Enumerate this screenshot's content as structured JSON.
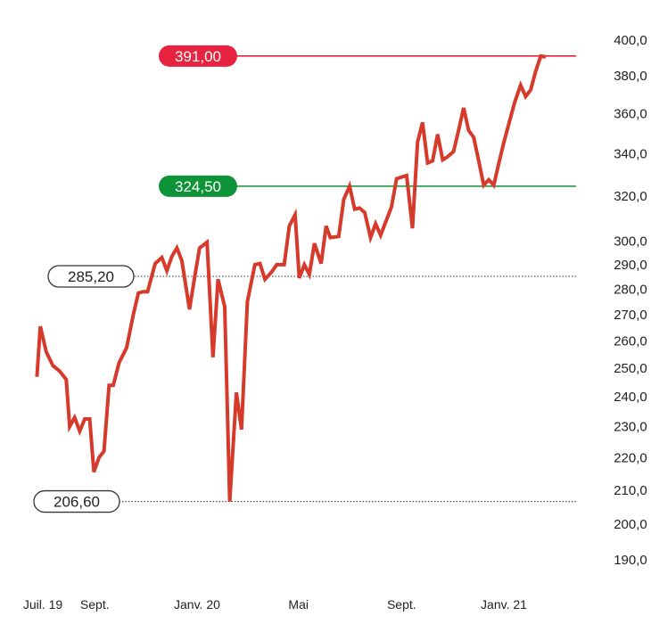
{
  "chart_data": {
    "type": "line",
    "title": "",
    "xlabel": "",
    "ylabel": "",
    "ylim": [
      185,
      400
    ],
    "y_scale": "log",
    "grid": false,
    "y_ticks": [
      {
        "value": 400,
        "label": "400,0"
      },
      {
        "value": 380,
        "label": "380,0"
      },
      {
        "value": 360,
        "label": "360,0"
      },
      {
        "value": 340,
        "label": "340,0"
      },
      {
        "value": 320,
        "label": "320,0"
      },
      {
        "value": 300,
        "label": "300,0"
      },
      {
        "value": 290,
        "label": "290,0"
      },
      {
        "value": 280,
        "label": "280,0"
      },
      {
        "value": 270,
        "label": "270,0"
      },
      {
        "value": 260,
        "label": "260,0"
      },
      {
        "value": 250,
        "label": "250,0"
      },
      {
        "value": 240,
        "label": "240,0"
      },
      {
        "value": 230,
        "label": "230,0"
      },
      {
        "value": 220,
        "label": "220,0"
      },
      {
        "value": 210,
        "label": "210,0"
      },
      {
        "value": 200,
        "label": "200,0"
      },
      {
        "value": 190,
        "label": "190,0"
      }
    ],
    "x_ticks": [
      {
        "date": "2019-07-01",
        "label": "Juil. 19"
      },
      {
        "date": "2019-09-01",
        "label": "Sept."
      },
      {
        "date": "2020-01-01",
        "label": "Janv. 20"
      },
      {
        "date": "2020-05-01",
        "label": "Mai"
      },
      {
        "date": "2020-09-01",
        "label": "Sept."
      },
      {
        "date": "2021-01-01",
        "label": "Janv. 21"
      }
    ],
    "series_color": "#d63a2a",
    "series": [
      {
        "name": "",
        "points": [
          [
            "2019-06-24",
            247.0
          ],
          [
            "2019-06-28",
            265.5
          ],
          [
            "2019-07-05",
            256.0
          ],
          [
            "2019-07-13",
            251.0
          ],
          [
            "2019-07-21",
            249.0
          ],
          [
            "2019-07-29",
            246.0
          ],
          [
            "2019-08-02",
            230.0
          ],
          [
            "2019-08-08",
            233.0
          ],
          [
            "2019-08-14",
            228.5
          ],
          [
            "2019-08-20",
            232.5
          ],
          [
            "2019-08-26",
            232.5
          ],
          [
            "2019-08-31",
            215.5
          ],
          [
            "2019-09-06",
            220.0
          ],
          [
            "2019-09-12",
            222.0
          ],
          [
            "2019-09-18",
            244.0
          ],
          [
            "2019-09-23",
            244.0
          ],
          [
            "2019-09-30",
            252.0
          ],
          [
            "2019-10-09",
            257.5
          ],
          [
            "2019-10-17",
            270.0
          ],
          [
            "2019-10-23",
            278.5
          ],
          [
            "2019-10-29",
            279.0
          ],
          [
            "2019-11-03",
            279.0
          ],
          [
            "2019-11-12",
            290.5
          ],
          [
            "2019-11-20",
            293.0
          ],
          [
            "2019-11-26",
            287.5
          ],
          [
            "2019-12-02",
            293.5
          ],
          [
            "2019-12-08",
            297.0
          ],
          [
            "2019-12-14",
            291.5
          ],
          [
            "2019-12-23",
            272.0
          ],
          [
            "2019-12-29",
            284.5
          ],
          [
            "2020-01-04",
            297.0
          ],
          [
            "2020-01-13",
            299.5
          ],
          [
            "2020-01-20",
            254.0
          ],
          [
            "2020-01-26",
            284.0
          ],
          [
            "2020-02-03",
            273.0
          ],
          [
            "2020-02-09",
            206.6
          ],
          [
            "2020-02-17",
            241.5
          ],
          [
            "2020-02-23",
            229.0
          ],
          [
            "2020-03-01",
            275.0
          ],
          [
            "2020-03-10",
            290.0
          ],
          [
            "2020-03-16",
            290.5
          ],
          [
            "2020-03-22",
            284.0
          ],
          [
            "2020-03-30",
            287.0
          ],
          [
            "2020-04-05",
            290.0
          ],
          [
            "2020-04-14",
            290.0
          ],
          [
            "2020-04-20",
            306.5
          ],
          [
            "2020-04-27",
            311.5
          ],
          [
            "2020-05-02",
            284.5
          ],
          [
            "2020-05-08",
            290.0
          ],
          [
            "2020-05-14",
            286.0
          ],
          [
            "2020-05-20",
            299.0
          ],
          [
            "2020-05-28",
            290.5
          ],
          [
            "2020-06-03",
            306.5
          ],
          [
            "2020-06-08",
            301.5
          ],
          [
            "2020-06-18",
            302.0
          ],
          [
            "2020-06-24",
            318.5
          ],
          [
            "2020-07-01",
            324.5
          ],
          [
            "2020-07-07",
            314.0
          ],
          [
            "2020-07-13",
            314.5
          ],
          [
            "2020-07-19",
            312.5
          ],
          [
            "2020-07-26",
            301.5
          ],
          [
            "2020-08-01",
            307.5
          ],
          [
            "2020-08-07",
            302.5
          ],
          [
            "2020-08-20",
            315.0
          ],
          [
            "2020-08-26",
            328.0
          ],
          [
            "2020-09-07",
            329.5
          ],
          [
            "2020-09-14",
            305.5
          ],
          [
            "2020-09-20",
            345.5
          ],
          [
            "2020-09-26",
            355.5
          ],
          [
            "2020-10-02",
            335.5
          ],
          [
            "2020-10-08",
            336.5
          ],
          [
            "2020-10-14",
            349.5
          ],
          [
            "2020-10-20",
            337.0
          ],
          [
            "2020-10-26",
            338.5
          ],
          [
            "2020-11-02",
            341.0
          ],
          [
            "2020-11-08",
            351.5
          ],
          [
            "2020-11-14",
            363.0
          ],
          [
            "2020-11-20",
            351.5
          ],
          [
            "2020-11-26",
            348.0
          ],
          [
            "2020-12-02",
            336.5
          ],
          [
            "2020-12-08",
            325.0
          ],
          [
            "2020-12-14",
            327.5
          ],
          [
            "2020-12-20",
            325.0
          ],
          [
            "2020-12-26",
            335.5
          ],
          [
            "2021-01-01",
            345.5
          ],
          [
            "2021-01-08",
            356.5
          ],
          [
            "2021-01-14",
            366.0
          ],
          [
            "2021-01-21",
            375.0
          ],
          [
            "2021-01-27",
            369.0
          ],
          [
            "2021-02-02",
            372.5
          ],
          [
            "2021-02-08",
            382.5
          ],
          [
            "2021-02-14",
            391.0
          ],
          [
            "2021-02-20",
            390.5
          ]
        ]
      }
    ],
    "reference_lines": [
      {
        "value": 391.0,
        "label": "391,00",
        "style": "solid",
        "color": "#e8233f",
        "badge": "filled"
      },
      {
        "value": 324.5,
        "label": "324,50",
        "style": "solid",
        "color": "#0d9338",
        "badge": "filled"
      },
      {
        "value": 285.2,
        "label": "285,20",
        "style": "dotted",
        "color": "#333333",
        "badge": "outline"
      },
      {
        "value": 206.6,
        "label": "206,60",
        "style": "dotted",
        "color": "#333333",
        "badge": "outline"
      }
    ]
  }
}
